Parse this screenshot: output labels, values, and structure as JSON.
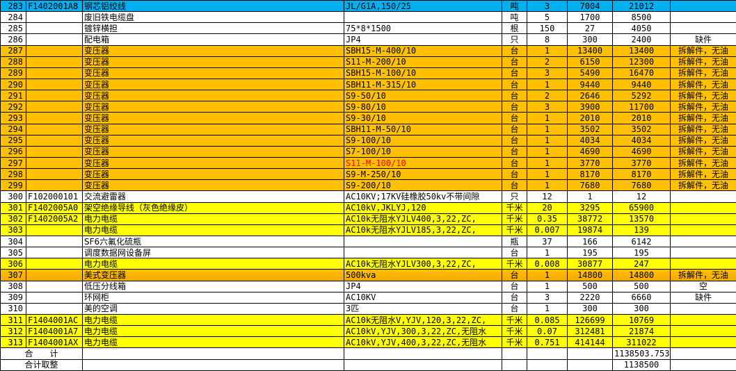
{
  "colors": {
    "blue": "#00b0f0",
    "orange": "#ffc000",
    "yellow": "#ffff00",
    "red_text": "#ff0000"
  },
  "rows": [
    {
      "style": "blue",
      "cells": [
        "283",
        "F1402001A8",
        "钢芯铝绞线",
        "JL/G1A,150/25",
        "吨",
        "3",
        "7004",
        "21012",
        ""
      ]
    },
    {
      "style": "",
      "cells": [
        "284",
        "",
        "废旧铁电缆盘",
        "",
        "吨",
        "5",
        "1700",
        "8500",
        ""
      ]
    },
    {
      "style": "",
      "cells": [
        "285",
        "",
        "镀锌横担",
        "75*8*1500",
        "根",
        "150",
        "27",
        "4050",
        ""
      ]
    },
    {
      "style": "",
      "cells": [
        "286",
        "",
        "配电箱",
        "JP4",
        "只",
        "8",
        "300",
        "2400",
        "缺件"
      ]
    },
    {
      "style": "orange",
      "cells": [
        "287",
        "",
        "变压器",
        "SBH15-M-400/10",
        "台",
        "1",
        "13400",
        "13400",
        "拆解件，无油"
      ]
    },
    {
      "style": "orange",
      "cells": [
        "288",
        "",
        "变压器",
        "S11-M-200/10",
        "台",
        "2",
        "6150",
        "12300",
        "拆解件，无油"
      ]
    },
    {
      "style": "orange",
      "cells": [
        "289",
        "",
        "变压器",
        "SBH15-M-100/10",
        "台",
        "3",
        "5490",
        "16470",
        "拆解件，无油"
      ]
    },
    {
      "style": "orange",
      "cells": [
        "290",
        "",
        "变压器",
        "SBH11-M-315/10",
        "台",
        "1",
        "9440",
        "9440",
        "拆解件，无油"
      ]
    },
    {
      "style": "orange",
      "cells": [
        "291",
        "",
        "变压器",
        "S9-50/10",
        "台",
        "2",
        "2646",
        "5292",
        "拆解件，无油"
      ]
    },
    {
      "style": "orange",
      "cells": [
        "292",
        "",
        "变压器",
        "S9-80/10",
        "台",
        "3",
        "3900",
        "11700",
        "拆解件，无油"
      ]
    },
    {
      "style": "orange",
      "cells": [
        "293",
        "",
        "变压器",
        "S9-30/10",
        "台",
        "1",
        "2010",
        "2010",
        "拆解件，无油"
      ]
    },
    {
      "style": "orange",
      "cells": [
        "294",
        "",
        "变压器",
        "SBH11-M-50/10",
        "台",
        "1",
        "3502",
        "3502",
        "拆解件，无油"
      ]
    },
    {
      "style": "orange",
      "cells": [
        "295",
        "",
        "变压器",
        "S9-100/10",
        "台",
        "1",
        "4034",
        "4034",
        "拆解件，无油"
      ]
    },
    {
      "style": "orange",
      "cells": [
        "296",
        "",
        "变压器",
        "S7-100/10",
        "台",
        "1",
        "4690",
        "4690",
        "拆解件，无油"
      ]
    },
    {
      "style": "orange",
      "red_spec": true,
      "cells": [
        "297",
        "",
        "变压器",
        "S11-M-100/10",
        "台",
        "1",
        "3770",
        "3770",
        "拆解件，无油"
      ]
    },
    {
      "style": "orange",
      "cells": [
        "298",
        "",
        "变压器",
        "S9-M-250/10",
        "台",
        "1",
        "8170",
        "8170",
        "拆解件，无油"
      ]
    },
    {
      "style": "orange",
      "cells": [
        "299",
        "",
        "变压器",
        "S9-200/10",
        "台",
        "1",
        "7680",
        "7680",
        "拆解件，无油"
      ]
    },
    {
      "style": "",
      "cells": [
        "300",
        "F102000101",
        "交流避雷器",
        "AC10KV;17KV硅橡胶50kv不带间隙",
        "只",
        "12",
        "1",
        "12",
        ""
      ]
    },
    {
      "style": "yellow",
      "cells": [
        "301",
        "F1402005A0",
        "架空绝缘导线（灰色绝缘皮）",
        "AC10kV,JKLYJ,120",
        "千米",
        "20",
        "3295",
        "65900",
        ""
      ]
    },
    {
      "style": "yellow",
      "cells": [
        "302",
        "F1402005A2",
        "电力电缆",
        "AC10k无阻水YJLV400,3,22,ZC,",
        "千米",
        "0.35",
        "38772",
        "13570",
        ""
      ]
    },
    {
      "style": "yellow",
      "cells": [
        "303",
        "",
        "电力电缆",
        "AC10k无阻水YJLV185,3,22,ZC,",
        "千米",
        "0.007",
        "19874",
        "139",
        ""
      ]
    },
    {
      "style": "",
      "cells": [
        "304",
        "",
        "SF6六氟化硫瓶",
        "",
        "瓶",
        "37",
        "166",
        "6142",
        ""
      ]
    },
    {
      "style": "",
      "cells": [
        "305",
        "",
        "调度数据网设备屏",
        "",
        "台",
        "1",
        "195",
        "195",
        ""
      ]
    },
    {
      "style": "yellow",
      "cells": [
        "306",
        "",
        "电力电缆",
        "AC10k无阻水YJLV300,3,22,ZC,",
        "千米",
        "0.008",
        "30877",
        "247",
        ""
      ]
    },
    {
      "style": "orange2",
      "cells": [
        "307",
        "",
        "美式变压器",
        "500kva",
        "台",
        "1",
        "14800",
        "14800",
        "拆解件，无油"
      ]
    },
    {
      "style": "",
      "cells": [
        "308",
        "",
        "低压分线箱",
        "JP4",
        "台",
        "1",
        "500",
        "500",
        "空"
      ]
    },
    {
      "style": "",
      "cells": [
        "309",
        "",
        "环网柜",
        "AC10KV",
        "台",
        "3",
        "2220",
        "6660",
        "缺件"
      ]
    },
    {
      "style": "",
      "cells": [
        "310",
        "",
        "美的空调",
        "3匹",
        "台",
        "1",
        "300",
        "300",
        ""
      ]
    },
    {
      "style": "yellow",
      "cells": [
        "311",
        "F1404001AC",
        "电力电缆",
        "AC10k无阻水V,YJV,120,3,22,ZC,",
        "千米",
        "0.085",
        "126699",
        "10769",
        ""
      ]
    },
    {
      "style": "yellow",
      "cells": [
        "312",
        "F1404001A7",
        "电力电缆",
        "AC10kV,YJV,300,3,22,ZC,无阻水",
        "千米",
        "0.07",
        "312481",
        "21874",
        ""
      ]
    },
    {
      "style": "yellow",
      "cells": [
        "313",
        "F1404001AX",
        "电力电缆",
        "AC10kV,YJV,400,3,22,ZC,无阻水",
        "千米",
        "0.751",
        "414144",
        "311022",
        ""
      ]
    }
  ],
  "totals": [
    {
      "label": "合　　计",
      "amount": "1138503.753"
    },
    {
      "label": "合计取整",
      "amount": "1138500"
    }
  ]
}
